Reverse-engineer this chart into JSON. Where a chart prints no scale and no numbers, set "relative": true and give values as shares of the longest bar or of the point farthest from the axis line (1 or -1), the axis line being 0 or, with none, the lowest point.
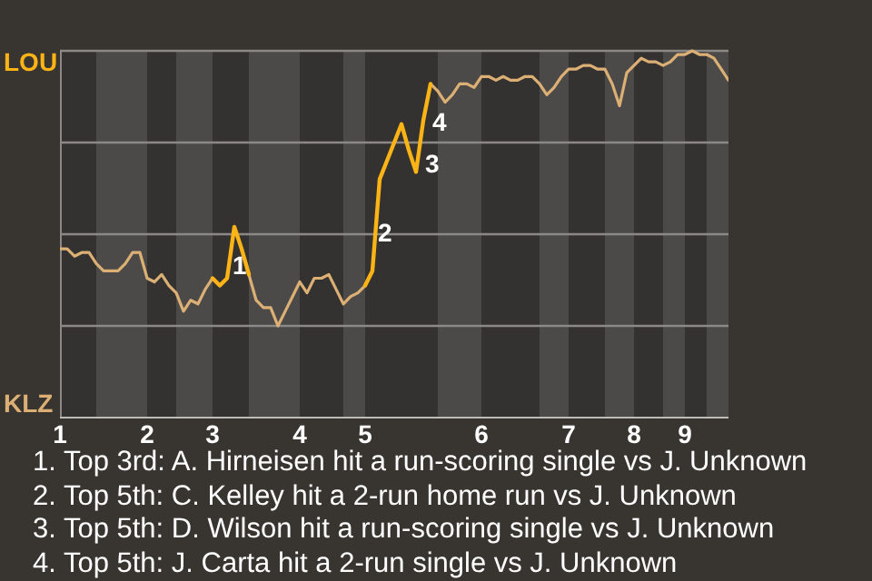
{
  "chart_data": {
    "type": "line",
    "relative": true,
    "categories": [
      "1",
      null,
      null,
      null,
      null,
      null,
      null,
      null,
      null,
      null,
      null,
      null,
      "2",
      null,
      null,
      null,
      null,
      null,
      null,
      null,
      null,
      "3",
      null,
      null,
      null,
      null,
      null,
      null,
      null,
      null,
      null,
      null,
      null,
      "4",
      null,
      null,
      null,
      null,
      null,
      null,
      null,
      null,
      "5",
      null,
      null,
      null,
      null,
      null,
      null,
      null,
      null,
      null,
      null,
      null,
      null,
      null,
      null,
      null,
      "6",
      null,
      null,
      null,
      null,
      null,
      null,
      null,
      null,
      null,
      null,
      null,
      "7",
      null,
      null,
      null,
      null,
      null,
      null,
      null,
      null,
      "8",
      null,
      null,
      null,
      null,
      null,
      null,
      "9",
      null,
      null,
      null,
      null,
      null,
      null
    ],
    "series": [
      {
        "color": "#dcb075",
        "values": [
          0.46,
          0.46,
          0.44,
          0.45,
          0.45,
          0.42,
          0.4,
          0.4,
          0.4,
          0.42,
          0.45,
          0.45,
          0.38,
          0.37,
          0.39,
          0.36,
          0.34,
          0.29,
          0.32,
          0.31,
          0.35,
          0.38,
          null,
          null,
          null,
          null,
          0.39,
          0.32,
          0.3,
          0.3,
          0.25,
          0.29,
          0.33,
          0.37,
          0.34,
          0.38,
          0.38,
          0.39,
          0.35,
          0.31,
          0.33,
          0.34,
          0.36,
          null,
          null,
          null,
          null,
          null,
          null,
          null,
          null,
          0.91,
          0.89,
          0.86,
          0.88,
          0.91,
          0.91,
          0.9,
          0.93,
          0.93,
          0.92,
          0.93,
          0.92,
          0.92,
          0.93,
          0.93,
          0.91,
          0.88,
          0.9,
          0.93,
          0.95,
          0.95,
          0.96,
          0.96,
          0.95,
          0.95,
          0.91,
          0.85,
          0.94,
          0.96,
          0.98,
          0.97,
          0.97,
          0.96,
          0.97,
          0.99,
          0.99,
          1,
          0.99,
          0.99,
          0.98,
          0.95,
          0.92
        ]
      },
      {
        "color": "#fbb316",
        "values": [
          null,
          null,
          null,
          null,
          null,
          null,
          null,
          null,
          null,
          null,
          null,
          null,
          null,
          null,
          null,
          null,
          null,
          null,
          null,
          null,
          null,
          0.38,
          0.36,
          0.38,
          0.52,
          0.46,
          0.39,
          null,
          null,
          null,
          null,
          null,
          null,
          null,
          null,
          null,
          null,
          null,
          null,
          null,
          null,
          null,
          0.36,
          0.4,
          0.65,
          0.7,
          0.75,
          0.8,
          0.73,
          0.67,
          0.81,
          0.91,
          null,
          null,
          null,
          null,
          null,
          null,
          null,
          null,
          null,
          null,
          null,
          null,
          null,
          null,
          null,
          null,
          null,
          null,
          null,
          null,
          null,
          null,
          null,
          null,
          null,
          null,
          null,
          null,
          null,
          null,
          null,
          null,
          null,
          null,
          null,
          null,
          null,
          null,
          null,
          null,
          null
        ]
      }
    ],
    "grid": "y",
    "marker": "none",
    "line_style": "solid",
    "annotations": [
      "LOU",
      "KLZ",
      "1",
      "2",
      "3",
      "4",
      "1. Top 3rd: A. Hirneisen hit a run-scoring single vs J. Unknown",
      "2. Top 5th: C. Kelley hit a 2-run home run vs J. Unknown",
      "3. Top 5th: D. Wilson hit a run-scoring single vs J. Unknown",
      "4. Top 5th: J. Carta hit a 2-run single vs J. Unknown"
    ]
  }
}
